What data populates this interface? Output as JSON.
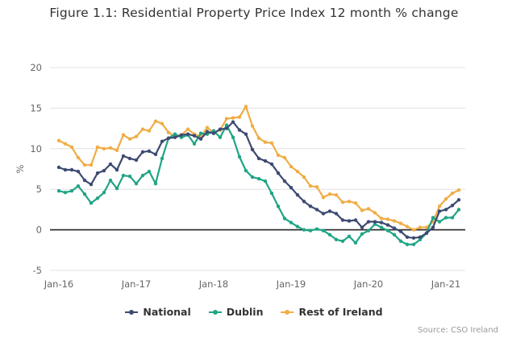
{
  "chart_data": {
    "type": "line",
    "title": "Figure 1.1: Residential Property Price Index 12 month % change",
    "xlabel": "",
    "ylabel": "%",
    "ylim": [
      -5,
      20
    ],
    "yticks": [
      -5,
      0,
      5,
      10,
      15,
      20
    ],
    "xtick_labels": [
      "Jan-16",
      "Jan-17",
      "Jan-18",
      "Jan-19",
      "Jan-20",
      "Jan-21"
    ],
    "x_start": "Jan-16",
    "x_frequency": "monthly",
    "n_points": 63,
    "grid": "horizontal",
    "zero_line": true,
    "legend_position": "bottom",
    "series": [
      {
        "name": "National",
        "color": "#3d4a72",
        "values": [
          7.7,
          7.4,
          7.4,
          7.2,
          6.1,
          5.6,
          7.0,
          7.3,
          8.1,
          7.4,
          9.1,
          8.8,
          8.6,
          9.6,
          9.7,
          9.3,
          10.9,
          11.3,
          11.4,
          11.7,
          11.8,
          11.6,
          11.2,
          12.1,
          11.9,
          12.4,
          12.5,
          13.3,
          12.3,
          11.8,
          9.9,
          8.8,
          8.5,
          8.1,
          7.0,
          6.0,
          5.2,
          4.3,
          3.5,
          2.9,
          2.5,
          2.0,
          2.3,
          2.0,
          1.2,
          1.1,
          1.2,
          0.3,
          1.0,
          1.0,
          0.9,
          0.6,
          0.2,
          -0.2,
          -0.9,
          -1.0,
          -0.9,
          -0.4,
          0.3,
          2.3,
          2.5,
          3.0,
          3.7
        ]
      },
      {
        "name": "Dublin",
        "color": "#1fa584",
        "values": [
          4.8,
          4.6,
          4.8,
          5.4,
          4.4,
          3.3,
          3.9,
          4.6,
          6.1,
          5.1,
          6.7,
          6.6,
          5.7,
          6.7,
          7.2,
          5.7,
          8.8,
          11.3,
          11.8,
          11.4,
          11.7,
          10.6,
          11.9,
          11.8,
          12.2,
          11.4,
          12.9,
          11.4,
          9.0,
          7.3,
          6.5,
          6.3,
          6.0,
          4.5,
          2.9,
          1.4,
          0.9,
          0.4,
          0.0,
          -0.1,
          0.1,
          -0.1,
          -0.6,
          -1.2,
          -1.4,
          -0.8,
          -1.6,
          -0.5,
          -0.1,
          0.7,
          0.3,
          -0.1,
          -0.6,
          -1.4,
          -1.8,
          -1.8,
          -1.2,
          -0.4,
          1.5,
          1.0,
          1.5,
          1.5,
          2.5
        ]
      },
      {
        "name": "Rest of Ireland",
        "color": "#f0ad45",
        "values": [
          11.0,
          10.6,
          10.2,
          8.9,
          8.0,
          8.0,
          10.2,
          10.0,
          10.1,
          9.8,
          11.7,
          11.2,
          11.5,
          12.4,
          12.2,
          13.4,
          13.1,
          12.0,
          11.5,
          11.7,
          12.4,
          11.8,
          11.5,
          12.6,
          12.0,
          12.3,
          13.7,
          13.8,
          13.9,
          15.2,
          12.8,
          11.3,
          10.8,
          10.7,
          9.2,
          8.9,
          7.8,
          7.2,
          6.5,
          5.4,
          5.3,
          4.0,
          4.4,
          4.3,
          3.4,
          3.5,
          3.3,
          2.4,
          2.6,
          2.1,
          1.4,
          1.3,
          1.1,
          0.8,
          0.4,
          0.0,
          0.3,
          0.3,
          1.0,
          2.9,
          3.8,
          4.5,
          4.9
        ]
      }
    ]
  },
  "source": "Source: CSO Ireland"
}
